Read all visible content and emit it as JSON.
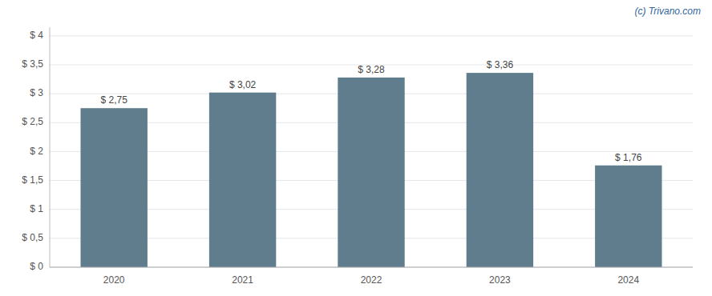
{
  "chart_data": {
    "type": "bar",
    "categories": [
      "2020",
      "2021",
      "2022",
      "2023",
      "2024"
    ],
    "values": [
      2.75,
      3.02,
      3.28,
      3.36,
      1.76
    ],
    "value_labels": [
      "$ 2,75",
      "$ 3,02",
      "$ 3,28",
      "$ 3,36",
      "$ 1,76"
    ],
    "color": "#5f7d8c",
    "ylim": [
      0,
      4.15
    ],
    "yticks": [
      {
        "value": 0,
        "label": "$ 0"
      },
      {
        "value": 0.5,
        "label": "$ 0,5"
      },
      {
        "value": 1.0,
        "label": "$ 1"
      },
      {
        "value": 1.5,
        "label": "$ 1,5"
      },
      {
        "value": 2.0,
        "label": "$ 2"
      },
      {
        "value": 2.5,
        "label": "$ 2,5"
      },
      {
        "value": 3.0,
        "label": "$ 3"
      },
      {
        "value": 3.5,
        "label": "$ 3,5"
      },
      {
        "value": 4.0,
        "label": "$ 4"
      }
    ],
    "grid": true,
    "data_labels": true,
    "annotation": "(c) Trivano.com"
  }
}
